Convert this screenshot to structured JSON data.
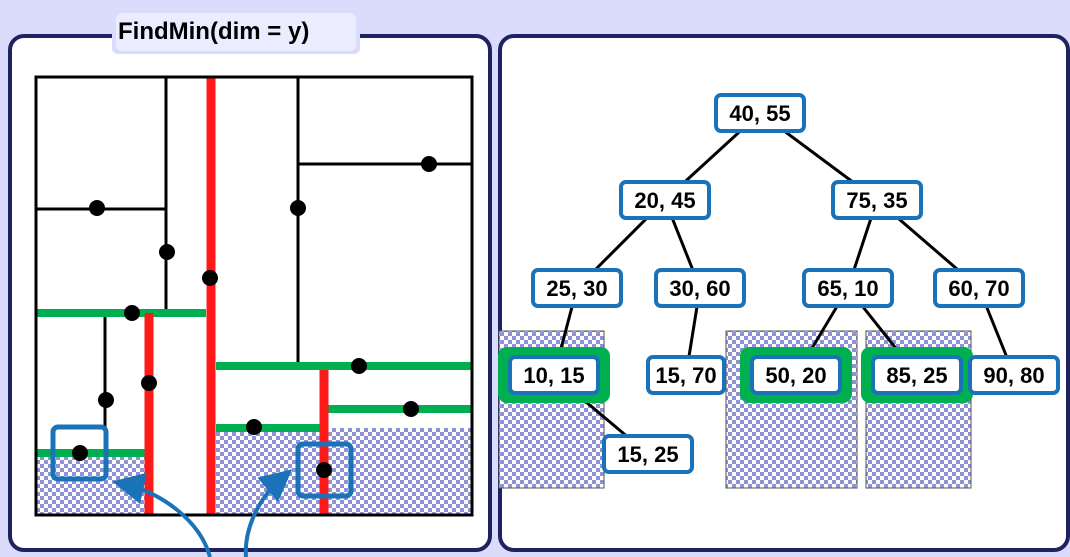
{
  "title": "FindMin(dim = y)",
  "colors": {
    "background": "#d9dcfb",
    "panel_border": "#1e2260",
    "split_x": "#ff1a1a",
    "split_y": "#00b050",
    "node_border": "#1a73b8",
    "highlight": "#00b050",
    "arrow": "#1a73b8"
  },
  "tree": {
    "nodes": [
      {
        "id": "n40-55",
        "label": "40, 55"
      },
      {
        "id": "n20-45",
        "label": "20, 45"
      },
      {
        "id": "n75-35",
        "label": "75, 35"
      },
      {
        "id": "n25-30",
        "label": "25, 30"
      },
      {
        "id": "n30-60",
        "label": "30, 60"
      },
      {
        "id": "n65-10",
        "label": "65, 10"
      },
      {
        "id": "n60-70",
        "label": "60, 70"
      },
      {
        "id": "n10-15",
        "label": "10, 15",
        "highlighted": true
      },
      {
        "id": "n15-70",
        "label": "15, 70"
      },
      {
        "id": "n50-20",
        "label": "50, 20",
        "highlighted": true
      },
      {
        "id": "n85-25",
        "label": "85, 25",
        "highlighted": true
      },
      {
        "id": "n90-80",
        "label": "90, 80"
      },
      {
        "id": "n15-25",
        "label": "15, 25"
      }
    ],
    "edges": [
      [
        "n40-55",
        "n20-45"
      ],
      [
        "n40-55",
        "n75-35"
      ],
      [
        "n20-45",
        "n25-30"
      ],
      [
        "n20-45",
        "n30-60"
      ],
      [
        "n75-35",
        "n65-10"
      ],
      [
        "n75-35",
        "n60-70"
      ],
      [
        "n25-30",
        "n10-15"
      ],
      [
        "n30-60",
        "n15-70"
      ],
      [
        "n65-10",
        "n50-20"
      ],
      [
        "n65-10",
        "n85-25"
      ],
      [
        "n60-70",
        "n90-80"
      ],
      [
        "n10-15",
        "n15-25"
      ]
    ]
  }
}
